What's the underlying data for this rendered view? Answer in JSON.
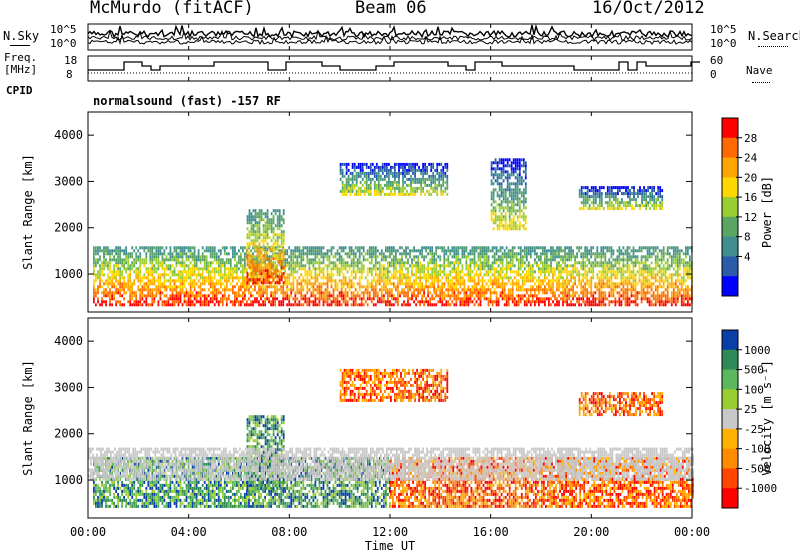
{
  "header": {
    "station": "McMurdo (fitACF)",
    "beam": "Beam 06",
    "date": "16/Oct/2012"
  },
  "info": {
    "nsky_label": "N.Sky",
    "nsearch_label": "N.Search",
    "freq_label": "Freq.",
    "freq_unit": "[MHz]",
    "nave_label": "Nave",
    "cpid_label": "CPID",
    "cpid_text": "normalsound (fast) -157 RF",
    "noise_ticks": [
      "10^5",
      "10^0"
    ],
    "freq_ticks": [
      "18",
      "8"
    ],
    "nave_ticks": [
      "60",
      "0"
    ]
  },
  "colors": {
    "frame": "#000000",
    "background": "#ffffff"
  },
  "chart_data": [
    {
      "type": "heatmap",
      "panel": "power",
      "ylabel": "Slant Range [km]",
      "xlabel": "",
      "ylim": [
        180,
        4500
      ],
      "yticks": [
        "4000",
        "3000",
        "2000",
        "1000"
      ],
      "colorbar": {
        "label": "Power [dB]",
        "ticks": [
          "28",
          "24",
          "20",
          "16",
          "12",
          "8",
          "4"
        ],
        "colors": [
          "#ff0000",
          "#ff6a00",
          "#ffa500",
          "#ffd700",
          "#9acd32",
          "#5aa464",
          "#3f8f8f",
          "#2a5caa",
          "#0000ff"
        ]
      },
      "echo_bands": [
        {
          "t_start": 0.2,
          "t_end": 24.0,
          "range_min": 350,
          "range_max": 1600,
          "level": "strong"
        },
        {
          "t_start": 6.3,
          "t_end": 7.8,
          "range_min": 800,
          "range_max": 2400,
          "level": "strong"
        },
        {
          "t_start": 10.0,
          "t_end": 14.3,
          "range_min": 2700,
          "range_max": 3400,
          "level": "weak"
        },
        {
          "t_start": 16.0,
          "t_end": 17.4,
          "range_min": 2000,
          "range_max": 3500,
          "level": "weak"
        },
        {
          "t_start": 19.5,
          "t_end": 22.8,
          "range_min": 2400,
          "range_max": 2900,
          "level": "weak"
        }
      ]
    },
    {
      "type": "heatmap",
      "panel": "velocity",
      "ylabel": "Slant Range [km]",
      "xlabel": "Time UT",
      "ylim": [
        180,
        4500
      ],
      "yticks": [
        "4000",
        "3000",
        "2000",
        "1000"
      ],
      "xticks": [
        "00:00",
        "04:00",
        "08:00",
        "12:00",
        "16:00",
        "20:00",
        "00:00"
      ],
      "colorbar": {
        "label": "Velocity [m s⁻¹]",
        "ticks": [
          "1000",
          "500",
          "100",
          "25",
          "-25",
          "-100",
          "-500",
          "-1000"
        ],
        "colors": [
          "#0b3fa8",
          "#2e8b57",
          "#5cb85c",
          "#9acd32",
          "#c8c8c8",
          "#ffb000",
          "#ff8c00",
          "#ff4500",
          "#ff0000"
        ]
      },
      "echo_bands": [
        {
          "t_start": 0.2,
          "t_end": 12.0,
          "range_min": 450,
          "range_max": 1500,
          "level": "toward"
        },
        {
          "t_start": 6.3,
          "t_end": 7.8,
          "range_min": 800,
          "range_max": 2400,
          "level": "toward"
        },
        {
          "t_start": 12.0,
          "t_end": 24.0,
          "range_min": 450,
          "range_max": 1500,
          "level": "away"
        },
        {
          "t_start": 0.0,
          "t_end": 24.0,
          "range_min": 1000,
          "range_max": 1700,
          "level": "low"
        },
        {
          "t_start": 10.0,
          "t_end": 14.3,
          "range_min": 2700,
          "range_max": 3400,
          "level": "away"
        },
        {
          "t_start": 19.5,
          "t_end": 22.8,
          "range_min": 2400,
          "range_max": 2900,
          "level": "away"
        }
      ]
    }
  ]
}
